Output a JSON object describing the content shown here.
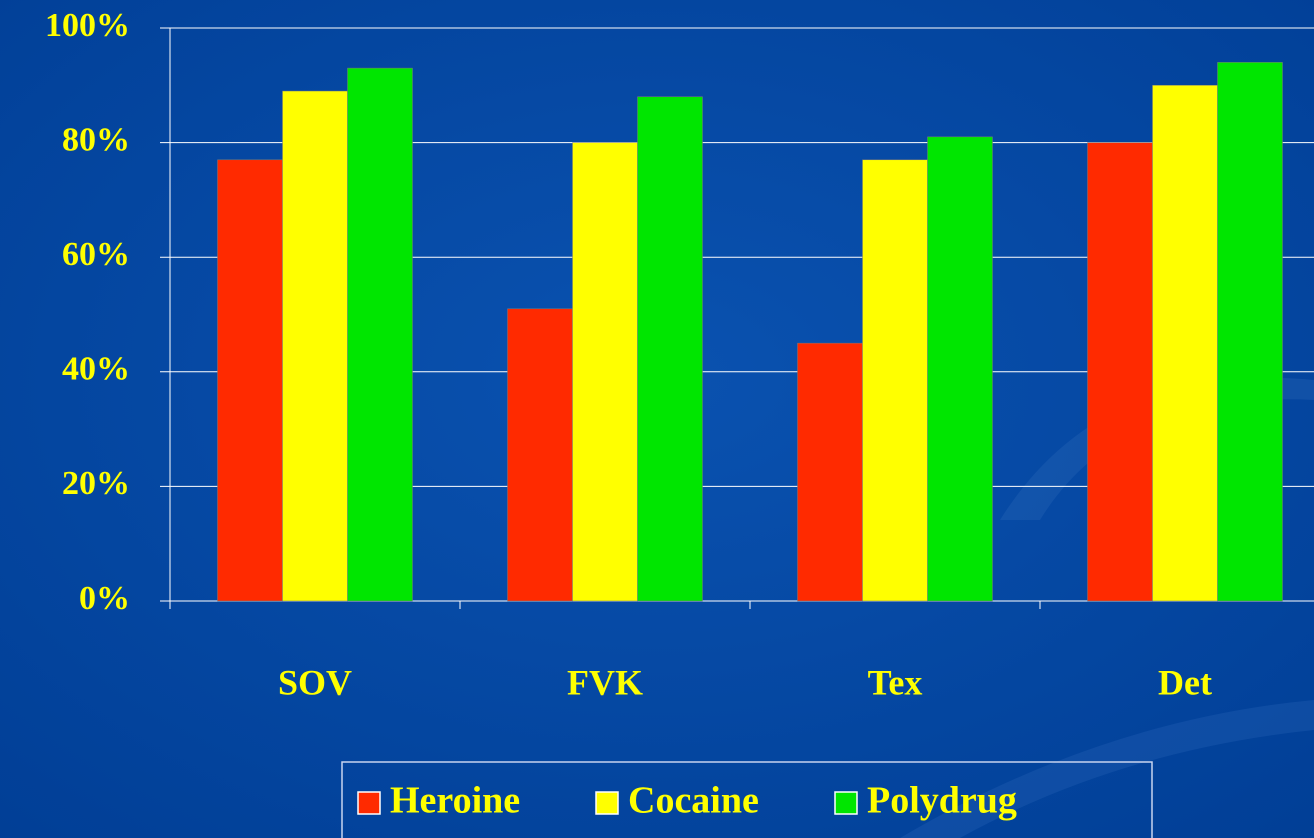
{
  "chart_data": {
    "type": "bar",
    "categories": [
      "SOV",
      "FVK",
      "Tex",
      "Det"
    ],
    "series": [
      {
        "name": "Heroine",
        "color": "#ff2a00",
        "values": [
          77,
          51,
          45,
          80
        ]
      },
      {
        "name": "Cocaine",
        "color": "#ffff00",
        "values": [
          89,
          80,
          77,
          90
        ]
      },
      {
        "name": "Polydrug",
        "color": "#00e600",
        "values": [
          93,
          88,
          81,
          94
        ]
      }
    ],
    "ylim": [
      0,
      100
    ],
    "yticks": [
      {
        "value": 0,
        "label": "0%"
      },
      {
        "value": 20,
        "label": "20%"
      },
      {
        "value": 40,
        "label": "40%"
      },
      {
        "value": 60,
        "label": "60%"
      },
      {
        "value": 80,
        "label": "80%"
      },
      {
        "value": 100,
        "label": "100%"
      }
    ],
    "grid": true,
    "legend": "bottom"
  }
}
